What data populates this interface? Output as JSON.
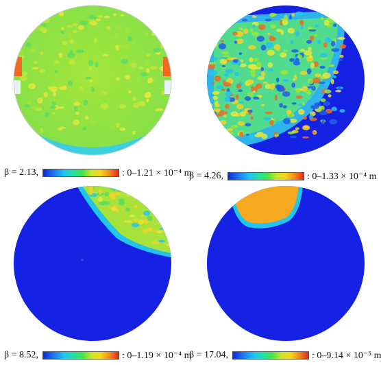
{
  "colors": {
    "deep_blue": "#1521e3",
    "green": "#7de23a",
    "yellow_green": "#b7e53a",
    "orange": "#f5a21c",
    "cyan": "#22c8f0",
    "red": "#e5341b"
  },
  "panels": [
    {
      "beta": "β = 2.13,",
      "range": ": 0–1.21 × 10⁻⁴ m"
    },
    {
      "beta": "β = 4.26,",
      "range": ": 0–1.33 × 10⁻⁴ m"
    },
    {
      "beta": "β = 8.52,",
      "range": ": 0–1.19 × 10⁻⁴ m"
    },
    {
      "beta": "β = 17.04,",
      "range": ": 0–9.14 × 10⁻⁵ m"
    }
  ]
}
